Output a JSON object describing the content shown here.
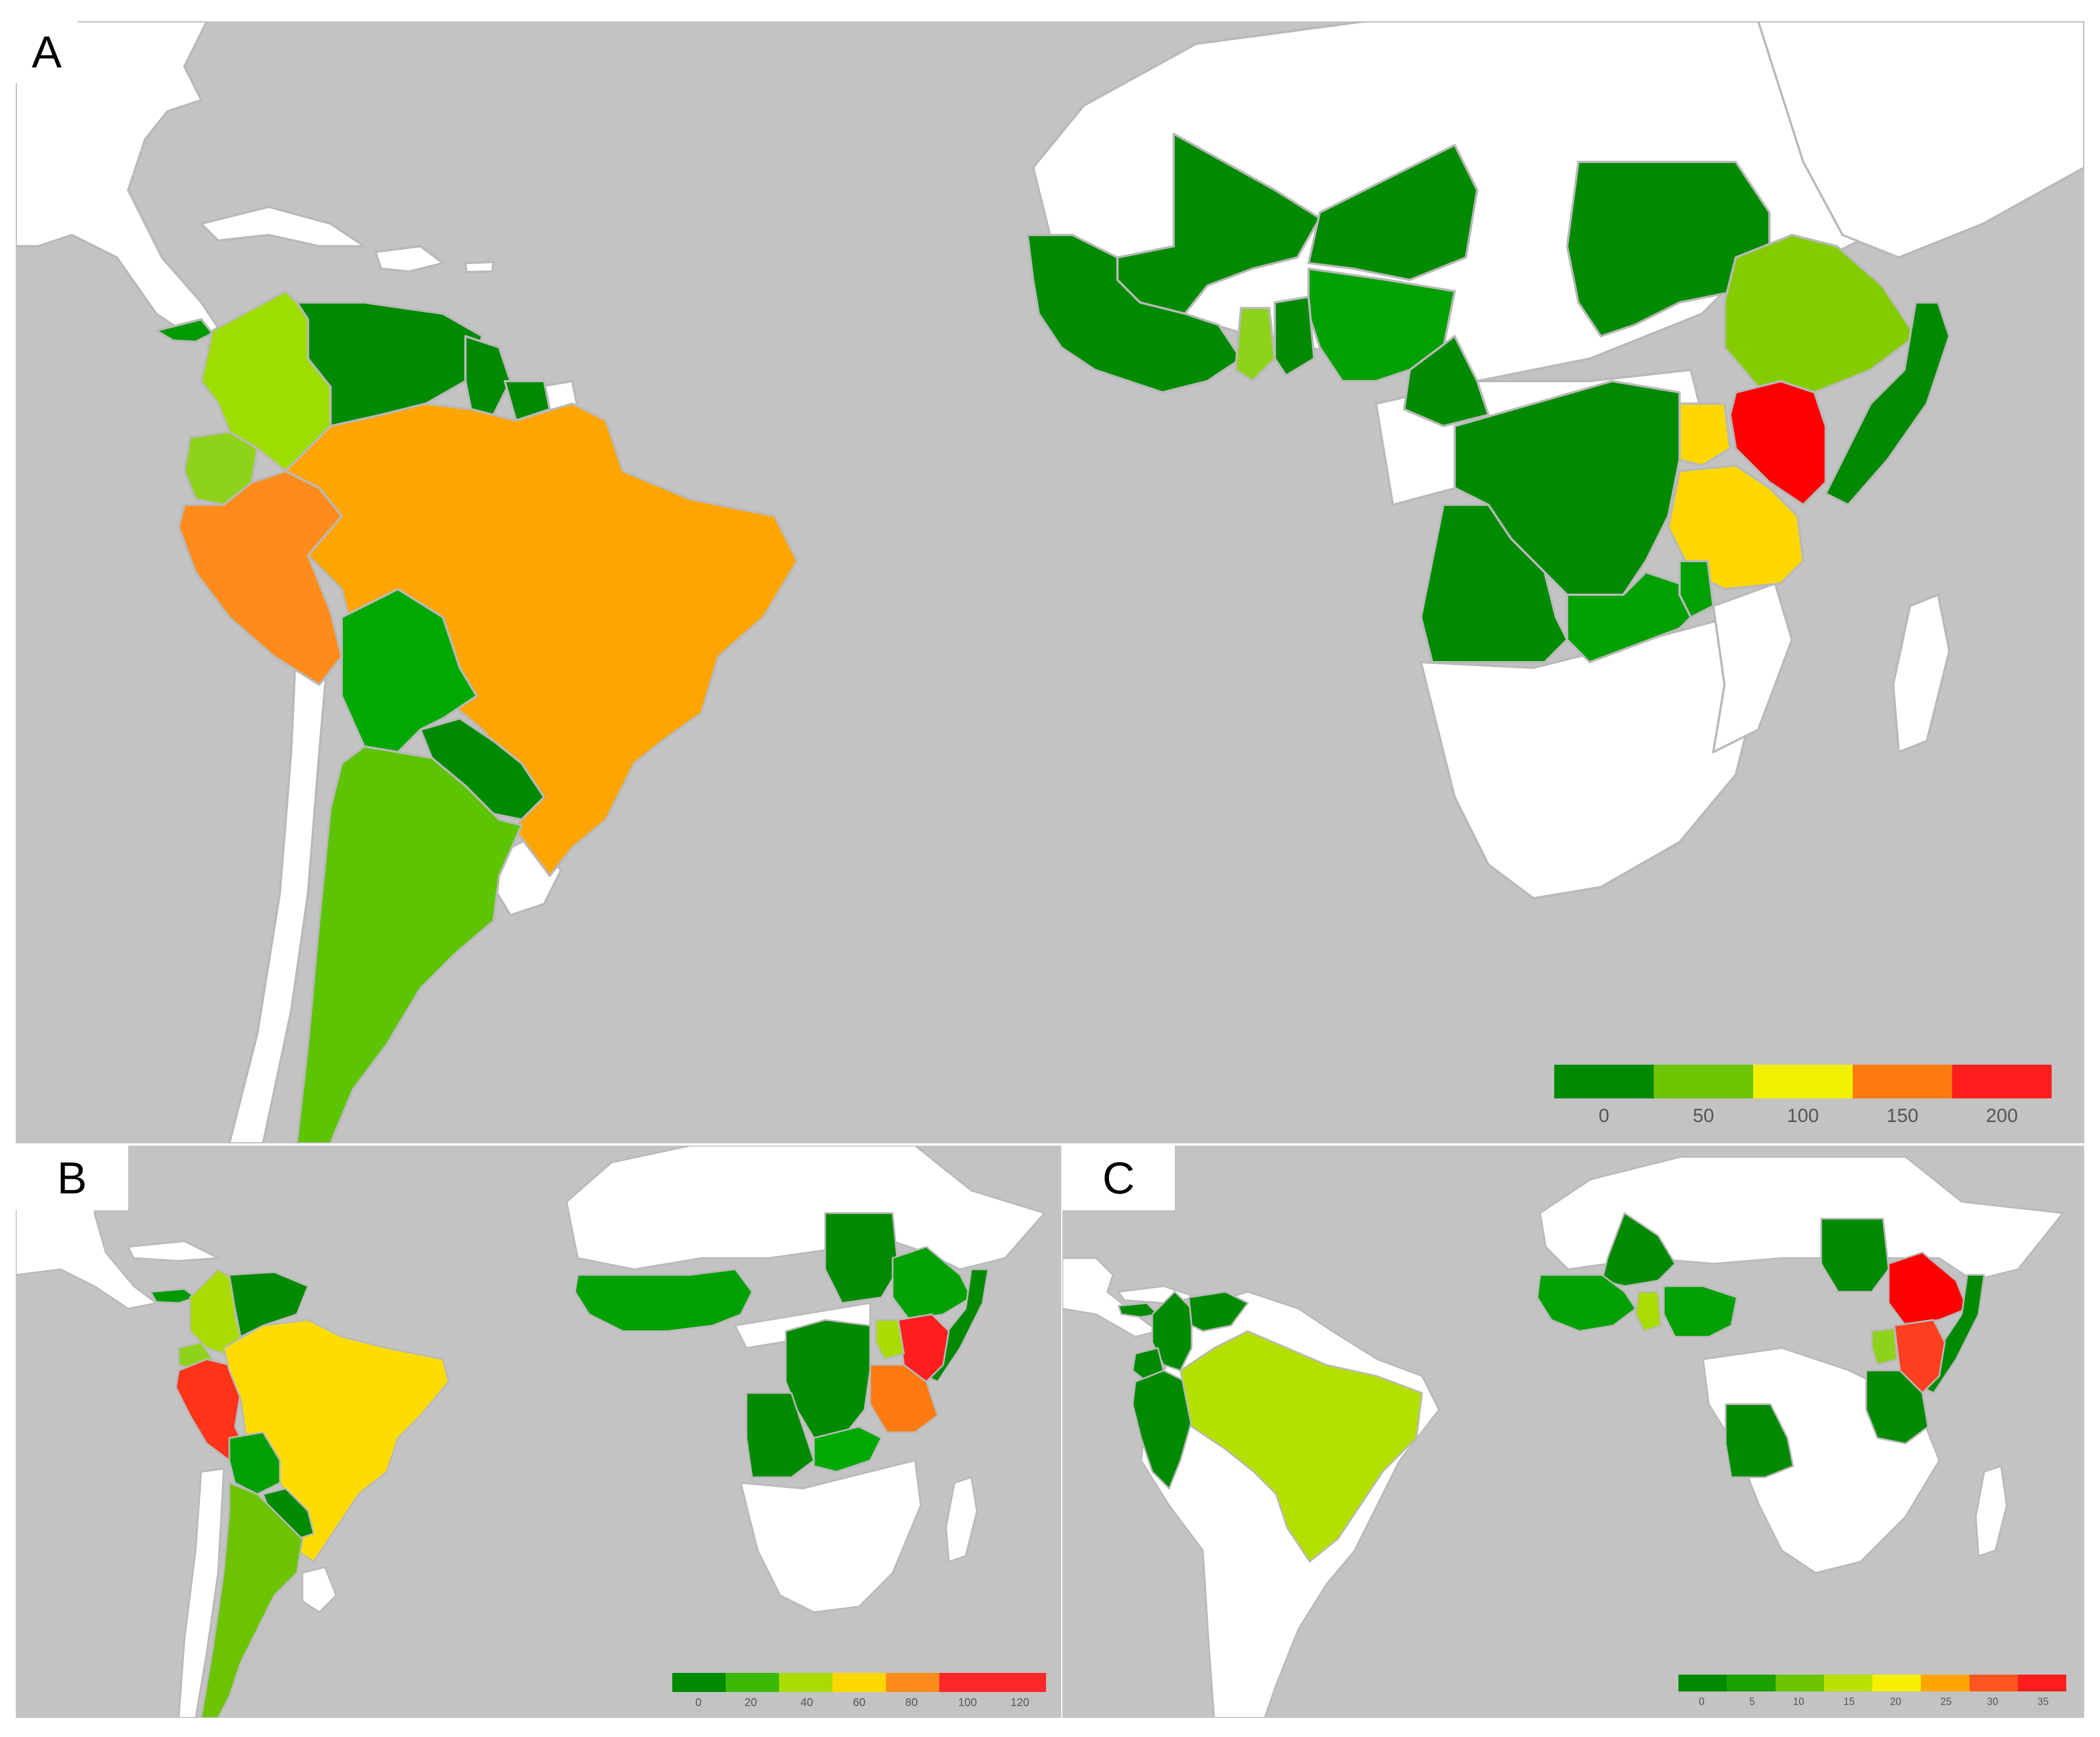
{
  "colors": {
    "ocean": "#c3c3c3",
    "land_no_data": "#ffffff",
    "border": "#b9b9b9"
  },
  "panels": {
    "a": {
      "label": "A",
      "legend": {
        "colors": [
          "#008a00",
          "#6fc400",
          "#f0f000",
          "#ff7a10",
          "#ff1e1e"
        ],
        "ticks": [
          "0",
          "50",
          "100",
          "150",
          "200"
        ]
      },
      "countries": {
        "brazil": "#ffa500",
        "peru": "#ff8c1a",
        "colombia": "#9edd00",
        "ecuador": "#8fd21a",
        "venezuela": "#008a00",
        "guyana": "#008a00",
        "suriname": "#008a00",
        "bolivia": "#00a800",
        "paraguay": "#008a00",
        "argentina": "#5cc400",
        "panama": "#009a00",
        "mali": "#008a00",
        "niger": "#008a00",
        "nigeria": "#00a000",
        "ghana": "#8fd21a",
        "west_africa": "#008a00",
        "sudan": "#008a00",
        "ethiopia": "#84cc00",
        "somalia": "#008a00",
        "kenya": "#ff0000",
        "uganda": "#ffd700",
        "tanzania": "#ffd700",
        "drc": "#008a00",
        "angola": "#008a00",
        "zambia": "#00a000",
        "malawi": "#00a000"
      }
    },
    "b": {
      "label": "B",
      "legend": {
        "colors": [
          "#008a00",
          "#3cb800",
          "#a8dc00",
          "#ffd700",
          "#ff8c1a",
          "#ff2828",
          "#ff2828"
        ],
        "ticks": [
          "0",
          "20",
          "40",
          "60",
          "80",
          "100",
          "120"
        ]
      },
      "countries": {
        "brazil": "#ffdc00",
        "peru": "#ff3418",
        "colombia": "#a8dc00",
        "ecuador": "#8fd21a",
        "venezuela": "#008a00",
        "bolivia": "#00a000",
        "paraguay": "#008a00",
        "argentina": "#6cc400",
        "panama": "#009a00",
        "west_africa": "#00a000",
        "sudan": "#008a00",
        "ethiopia": "#00a000",
        "somalia": "#008a00",
        "kenya": "#ff1e1e",
        "uganda": "#a8dc00",
        "tanzania": "#ff7a10",
        "drc": "#008a00",
        "angola": "#008a00",
        "zambia": "#00a800"
      }
    },
    "c": {
      "label": "C",
      "legend": {
        "colors": [
          "#008a00",
          "#1aa000",
          "#6cc400",
          "#b8e000",
          "#f5f000",
          "#ffa500",
          "#ff5520",
          "#ff1e1e"
        ],
        "ticks": [
          "0",
          "5",
          "10",
          "15",
          "20",
          "25",
          "30",
          "35"
        ]
      },
      "countries": {
        "brazil": "#b4e000",
        "peru": "#008a00",
        "colombia": "#008a00",
        "ecuador": "#008a00",
        "venezuela": "#008a00",
        "panama": "#008a00",
        "mali": "#008a00",
        "west_africa": "#00a000",
        "ghana": "#a8dc00",
        "nigeria": "#00a000",
        "sudan": "#008a00",
        "ethiopia": "#ff0000",
        "somalia": "#008a00",
        "kenya": "#ff4020",
        "uganda": "#8fd21a",
        "tanzania": "#008a00",
        "angola": "#008a00"
      }
    }
  }
}
